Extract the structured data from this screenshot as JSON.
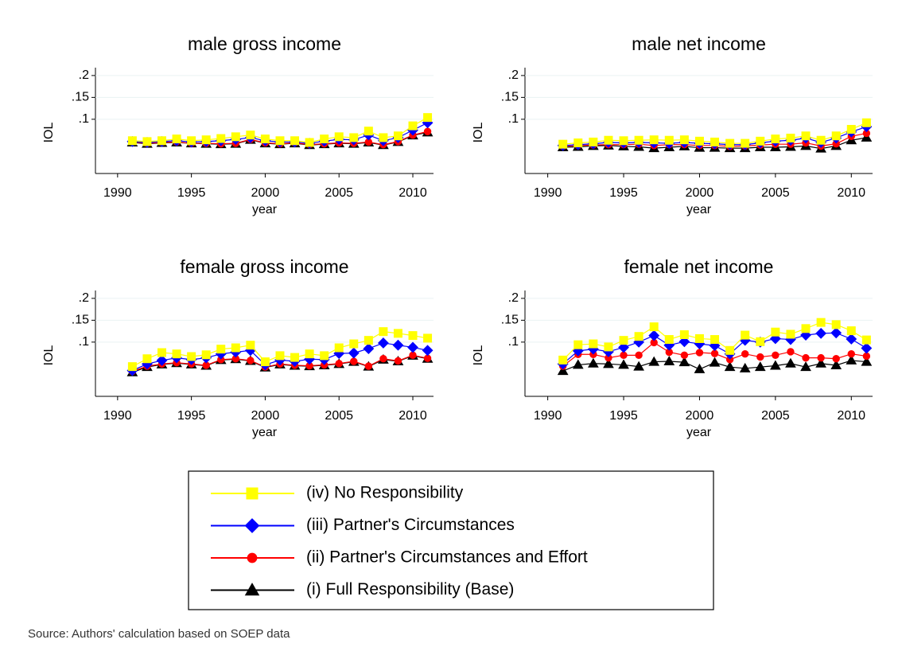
{
  "legend": {
    "entries": [
      {
        "name": "(iv) No Responsibility",
        "color": "#ffff00",
        "marker": "square"
      },
      {
        "name": "(iii) Partner's Circumstances",
        "color": "#0000ff",
        "marker": "diamond"
      },
      {
        "name": "(ii) Partner's Circumstances and Effort",
        "color": "#ff0000",
        "marker": "circle"
      },
      {
        "name": "(i) Full Responsibility (Base)",
        "color": "#000000",
        "marker": "triangle"
      }
    ]
  },
  "source": "Source: Authors' calculation based on SOEP data",
  "chart_data": [
    {
      "type": "line",
      "title": "male gross income",
      "xlabel": "year",
      "ylabel": "IOL",
      "x": [
        1991,
        1992,
        1993,
        1994,
        1995,
        1996,
        1997,
        1998,
        1999,
        2000,
        2001,
        2002,
        2003,
        2004,
        2005,
        2006,
        2007,
        2008,
        2009,
        2010,
        2011
      ],
      "series": [
        {
          "values": [
            0.051,
            0.049,
            0.051,
            0.055,
            0.051,
            0.053,
            0.056,
            0.06,
            0.064,
            0.055,
            0.051,
            0.051,
            0.047,
            0.055,
            0.06,
            0.058,
            0.073,
            0.058,
            0.062,
            0.085,
            0.104
          ]
        },
        {
          "values": [
            0.049,
            0.047,
            0.049,
            0.051,
            0.048,
            0.049,
            0.051,
            0.054,
            0.058,
            0.051,
            0.048,
            0.048,
            0.045,
            0.05,
            0.054,
            0.053,
            0.064,
            0.051,
            0.058,
            0.075,
            0.092
          ]
        },
        {
          "values": [
            0.048,
            0.045,
            0.047,
            0.048,
            0.045,
            0.045,
            0.044,
            0.045,
            0.054,
            0.046,
            0.044,
            0.046,
            0.042,
            0.044,
            0.046,
            0.045,
            0.048,
            0.042,
            0.049,
            0.064,
            0.072
          ]
        },
        {
          "values": [
            0.047,
            0.044,
            0.046,
            0.047,
            0.045,
            0.044,
            0.043,
            0.044,
            0.053,
            0.045,
            0.043,
            0.045,
            0.041,
            0.043,
            0.045,
            0.044,
            0.047,
            0.041,
            0.048,
            0.063,
            0.07
          ]
        }
      ],
      "xlim": [
        1988.5,
        2011.4
      ],
      "ylim": [
        -0.024,
        0.218
      ],
      "xticks": [
        1990,
        1995,
        2000,
        2005,
        2010
      ],
      "yticks": [
        {
          "value": 0.1,
          "label": ".1"
        },
        {
          "value": 0.15,
          "label": ".15"
        },
        {
          "value": 0.2,
          "label": ".2"
        }
      ]
    },
    {
      "type": "line",
      "title": "male net income",
      "xlabel": "year",
      "ylabel": "IOL",
      "x": [
        1991,
        1992,
        1993,
        1994,
        1995,
        1996,
        1997,
        1998,
        1999,
        2000,
        2001,
        2002,
        2003,
        2004,
        2005,
        2006,
        2007,
        2008,
        2009,
        2010,
        2011
      ],
      "series": [
        {
          "values": [
            0.043,
            0.046,
            0.048,
            0.052,
            0.051,
            0.052,
            0.053,
            0.052,
            0.053,
            0.05,
            0.048,
            0.045,
            0.045,
            0.05,
            0.055,
            0.057,
            0.062,
            0.052,
            0.062,
            0.077,
            0.092
          ]
        },
        {
          "values": [
            0.04,
            0.042,
            0.044,
            0.047,
            0.046,
            0.047,
            0.046,
            0.045,
            0.047,
            0.045,
            0.044,
            0.042,
            0.042,
            0.046,
            0.05,
            0.052,
            0.057,
            0.047,
            0.057,
            0.071,
            0.083
          ]
        },
        {
          "values": [
            0.038,
            0.04,
            0.041,
            0.042,
            0.042,
            0.043,
            0.04,
            0.042,
            0.042,
            0.04,
            0.04,
            0.038,
            0.039,
            0.041,
            0.043,
            0.043,
            0.046,
            0.039,
            0.044,
            0.061,
            0.068
          ]
        },
        {
          "values": [
            0.036,
            0.037,
            0.039,
            0.04,
            0.038,
            0.037,
            0.034,
            0.036,
            0.038,
            0.035,
            0.035,
            0.034,
            0.034,
            0.036,
            0.036,
            0.037,
            0.039,
            0.033,
            0.039,
            0.052,
            0.058
          ]
        }
      ],
      "xlim": [
        1988.5,
        2011.4
      ],
      "ylim": [
        -0.024,
        0.218
      ],
      "xticks": [
        1990,
        1995,
        2000,
        2005,
        2010
      ],
      "yticks": [
        {
          "value": 0.1,
          "label": ".1"
        },
        {
          "value": 0.15,
          "label": ".15"
        },
        {
          "value": 0.2,
          "label": ".2"
        }
      ]
    },
    {
      "type": "line",
      "title": "female gross income",
      "xlabel": "year",
      "ylabel": "IOL",
      "x": [
        1991,
        1992,
        1993,
        1994,
        1995,
        1996,
        1997,
        1998,
        1999,
        2000,
        2001,
        2002,
        2003,
        2004,
        2005,
        2006,
        2007,
        2008,
        2009,
        2010,
        2011
      ],
      "series": [
        {
          "values": [
            0.044,
            0.062,
            0.076,
            0.073,
            0.067,
            0.071,
            0.084,
            0.087,
            0.093,
            0.055,
            0.069,
            0.065,
            0.073,
            0.069,
            0.087,
            0.096,
            0.104,
            0.124,
            0.12,
            0.115,
            0.109
          ]
        },
        {
          "values": [
            0.035,
            0.05,
            0.058,
            0.064,
            0.06,
            0.064,
            0.073,
            0.077,
            0.081,
            0.048,
            0.059,
            0.056,
            0.061,
            0.06,
            0.074,
            0.075,
            0.085,
            0.098,
            0.093,
            0.088,
            0.081
          ]
        },
        {
          "values": [
            0.033,
            0.045,
            0.05,
            0.053,
            0.05,
            0.047,
            0.06,
            0.062,
            0.058,
            0.043,
            0.05,
            0.047,
            0.046,
            0.048,
            0.051,
            0.056,
            0.045,
            0.062,
            0.057,
            0.07,
            0.063
          ]
        },
        {
          "values": [
            0.031,
            0.043,
            0.049,
            0.052,
            0.049,
            0.046,
            0.059,
            0.061,
            0.057,
            0.042,
            0.049,
            0.046,
            0.045,
            0.047,
            0.05,
            0.055,
            0.044,
            0.06,
            0.056,
            0.069,
            0.062
          ]
        }
      ],
      "xlim": [
        1988.5,
        2011.4
      ],
      "ylim": [
        -0.024,
        0.218
      ],
      "xticks": [
        1990,
        1995,
        2000,
        2005,
        2010
      ],
      "yticks": [
        {
          "value": 0.1,
          "label": ".1"
        },
        {
          "value": 0.15,
          "label": ".15"
        },
        {
          "value": 0.2,
          "label": ".2"
        }
      ]
    },
    {
      "type": "line",
      "title": "female net income",
      "xlabel": "year",
      "ylabel": "IOL",
      "x": [
        1991,
        1992,
        1993,
        1994,
        1995,
        1996,
        1997,
        1998,
        1999,
        2000,
        2001,
        2002,
        2003,
        2004,
        2005,
        2006,
        2007,
        2008,
        2009,
        2010,
        2011
      ],
      "series": [
        {
          "values": [
            0.059,
            0.094,
            0.096,
            0.089,
            0.104,
            0.113,
            0.135,
            0.106,
            0.117,
            0.108,
            0.106,
            0.081,
            0.116,
            0.101,
            0.123,
            0.118,
            0.131,
            0.145,
            0.14,
            0.126,
            0.105
          ]
        },
        {
          "values": [
            0.05,
            0.08,
            0.084,
            0.078,
            0.088,
            0.1,
            0.115,
            0.093,
            0.101,
            0.096,
            0.092,
            0.073,
            0.104,
            0.1,
            0.108,
            0.106,
            0.116,
            0.12,
            0.121,
            0.107,
            0.086
          ]
        },
        {
          "values": [
            0.045,
            0.072,
            0.072,
            0.064,
            0.07,
            0.07,
            0.099,
            0.077,
            0.07,
            0.076,
            0.074,
            0.06,
            0.073,
            0.066,
            0.07,
            0.078,
            0.064,
            0.064,
            0.062,
            0.073,
            0.068
          ]
        },
        {
          "values": [
            0.034,
            0.048,
            0.051,
            0.05,
            0.048,
            0.044,
            0.055,
            0.056,
            0.054,
            0.038,
            0.053,
            0.043,
            0.04,
            0.043,
            0.046,
            0.051,
            0.043,
            0.051,
            0.047,
            0.058,
            0.055
          ]
        }
      ],
      "xlim": [
        1988.5,
        2011.4
      ],
      "ylim": [
        -0.024,
        0.218
      ],
      "xticks": [
        1990,
        1995,
        2000,
        2005,
        2010
      ],
      "yticks": [
        {
          "value": 0.1,
          "label": ".1"
        },
        {
          "value": 0.15,
          "label": ".15"
        },
        {
          "value": 0.2,
          "label": ".2"
        }
      ]
    }
  ]
}
